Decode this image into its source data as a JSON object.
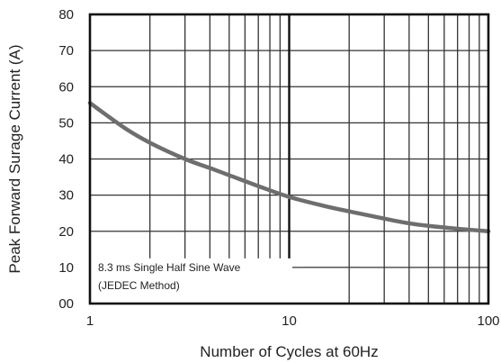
{
  "chart_data": {
    "type": "line",
    "xscale": "log",
    "xlim": [
      1,
      100
    ],
    "ylim": [
      0,
      80
    ],
    "x_ticks": [
      1,
      10,
      100
    ],
    "x_tick_labels": [
      "1",
      "10",
      "100"
    ],
    "y_ticks": [
      0,
      10,
      20,
      30,
      40,
      50,
      60,
      70,
      80
    ],
    "y_tick_labels": [
      "00",
      "10",
      "20",
      "30",
      "40",
      "50",
      "60",
      "70",
      "80"
    ],
    "xlabel": "Number of Cycles at 60Hz",
    "ylabel": "Peak Forward Surage Current (A)",
    "grid": true,
    "series": [
      {
        "color": "#6e6e6e",
        "x": [
          1,
          1.5,
          2,
          3,
          4,
          5,
          7,
          10,
          15,
          20,
          30,
          40,
          50,
          70,
          100
        ],
        "y": [
          55.5,
          48.5,
          44.5,
          40,
          37.5,
          35.5,
          32.5,
          29.5,
          27,
          25.5,
          23.5,
          22.2,
          21.5,
          20.7,
          20
        ]
      }
    ],
    "annotation": {
      "lines": [
        "8.3 ms Single Half Sine Wave",
        "(JEDEC Method)"
      ]
    }
  }
}
